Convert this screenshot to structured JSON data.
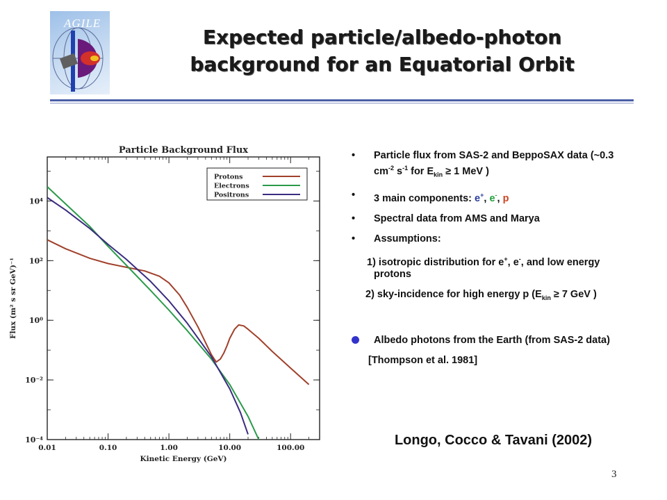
{
  "logo": {
    "text": "AGILE"
  },
  "slide": {
    "title_line1": "Expected particle/albedo-photon",
    "title_line2": "background for an Equatorial Orbit",
    "page_number": "3",
    "citation": "Longo, Cocco & Tavani (2002)"
  },
  "bullets": {
    "b1_main": "Particle flux from SAS-2 and BeppoSAX data (~0.3 cm",
    "b1_sup1": "-2",
    "b1_s": " s",
    "b1_sup2": "-1",
    "b1_for": " for E",
    "b1_sub": "kin",
    "b1_end": " ≥ 1 MeV )",
    "b2_main": "3 main components: ",
    "b2_e": "e",
    "b2_eplus": "+",
    "b2_sep1": ", ",
    "b2_em": "e",
    "b2_eminus": "-",
    "b2_sep2": ", ",
    "b2_p": "p",
    "b3": "Spectral data from AMS and Marya",
    "b4": "Assumptions:",
    "s1_a": "1) isotropic distribution for e",
    "s1_sup1": "+",
    "s1_b": ", e",
    "s1_sup2": "-",
    "s1_c": ", and low energy protons",
    "s2_a": "2) sky-incidence for high energy p (E",
    "s2_sub": "kin",
    "s2_b": " ≥ 7  GeV )",
    "b5": "Albedo photons from the Earth (from SAS-2 data)",
    "ref": "[Thompson et al. 1981]"
  },
  "chart_data": {
    "type": "line",
    "title": "Particle Background Flux",
    "xlabel": "Kinetic Energy (GeV)",
    "ylabel": "Flux (m² s sr GeV)⁻¹",
    "x_scale": "log",
    "y_scale": "log",
    "xlim": [
      0.01,
      300
    ],
    "ylim": [
      0.0001,
      300000
    ],
    "x_ticks": [
      "0.01",
      "0.10",
      "1.00",
      "10.00",
      "100.00"
    ],
    "y_ticks": [
      "10⁻⁴",
      "10⁻²",
      "10⁰",
      "10²",
      "10⁴"
    ],
    "legend_position": "top-right",
    "grid": false,
    "series": [
      {
        "name": "Protons",
        "color": "#a0402a",
        "x": [
          0.01,
          0.02,
          0.05,
          0.1,
          0.2,
          0.4,
          0.7,
          1.0,
          1.5,
          2.0,
          3.0,
          4.0,
          5.0,
          6.0,
          7.0,
          8.0,
          9.0,
          10.0,
          12.0,
          14.0,
          17.0,
          20.0,
          30.0,
          50.0,
          100.0,
          200.0
        ],
        "y": [
          500,
          250,
          120,
          80,
          60,
          45,
          30,
          18,
          7,
          2.7,
          0.6,
          0.18,
          0.07,
          0.04,
          0.05,
          0.08,
          0.14,
          0.25,
          0.5,
          0.7,
          0.65,
          0.5,
          0.25,
          0.09,
          0.025,
          0.007
        ]
      },
      {
        "name": "Electrons",
        "color": "#2a9a4a",
        "x": [
          0.01,
          0.02,
          0.05,
          0.1,
          0.2,
          0.5,
          1.0,
          2.0,
          5.0,
          10.0,
          20.0,
          30.0
        ],
        "y": [
          30000,
          8000,
          1400,
          300,
          70,
          10,
          2.2,
          0.45,
          0.05,
          0.007,
          0.0006,
          0.0001
        ]
      },
      {
        "name": "Positrons",
        "color": "#3a2c80",
        "x": [
          0.01,
          0.02,
          0.05,
          0.1,
          0.2,
          0.5,
          1.0,
          2.0,
          5.0,
          10.0,
          15.0,
          20.0
        ],
        "y": [
          13000,
          5000,
          1200,
          350,
          110,
          20,
          4.5,
          0.8,
          0.06,
          0.005,
          0.0008,
          0.00015
        ]
      }
    ]
  }
}
